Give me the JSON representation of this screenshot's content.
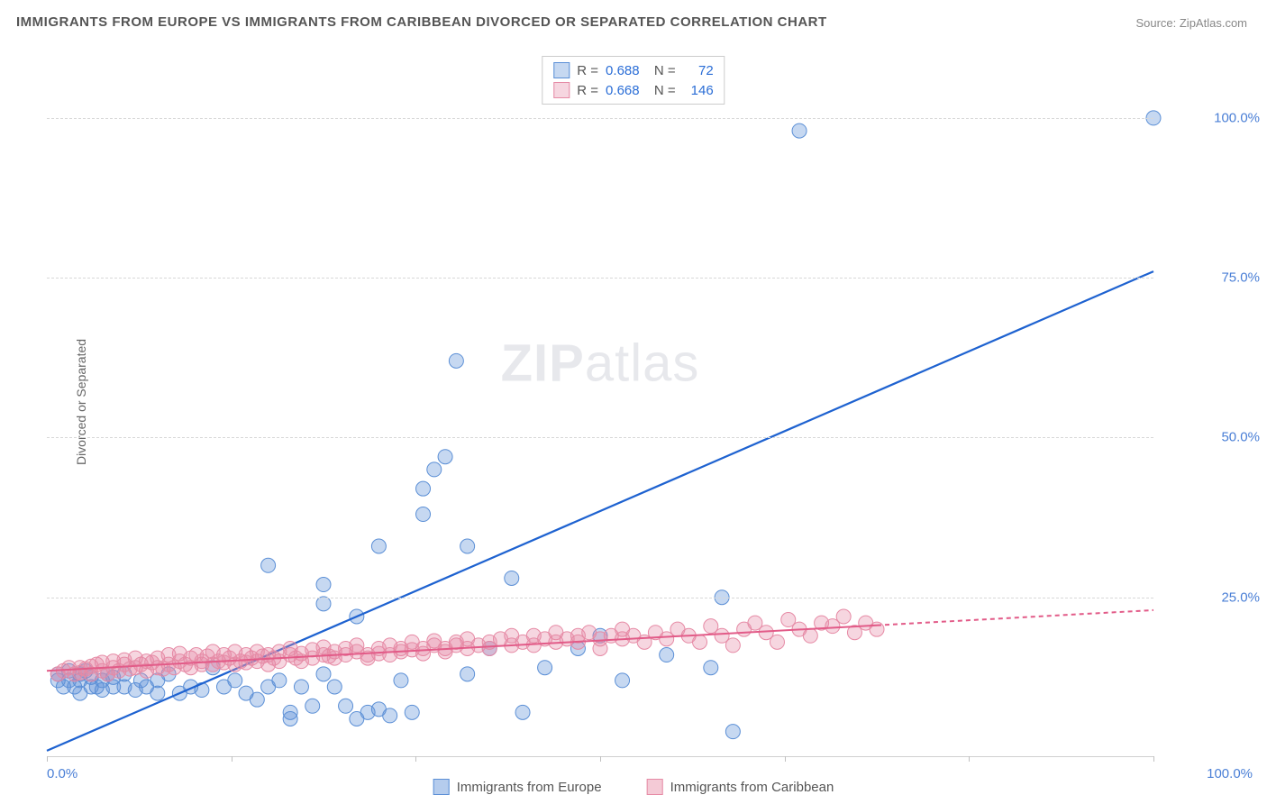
{
  "title": "IMMIGRANTS FROM EUROPE VS IMMIGRANTS FROM CARIBBEAN DIVORCED OR SEPARATED CORRELATION CHART",
  "source": "Source: ZipAtlas.com",
  "ylabel": "Divorced or Separated",
  "watermark_zip": "ZIP",
  "watermark_atlas": "atlas",
  "chart": {
    "type": "scatter",
    "background_color": "#ffffff",
    "grid_color": "#d8d8d8",
    "axis_color": "#d0d0d0",
    "ylim": [
      0,
      110
    ],
    "yticks": [
      25,
      50,
      75,
      100
    ],
    "ytick_labels": [
      "25.0%",
      "50.0%",
      "75.0%",
      "100.0%"
    ],
    "xlim": [
      0,
      100
    ],
    "xticks": [
      0,
      16.67,
      33.33,
      50,
      66.67,
      83.33,
      100
    ],
    "xtick_labels_shown": {
      "0": "0.0%",
      "100": "100.0%"
    },
    "label_color": "#4a7fd6",
    "label_fontsize": 15,
    "marker_radius": 8,
    "marker_opacity": 0.5,
    "marker_stroke_width": 1,
    "series": [
      {
        "name": "Immigrants from Europe",
        "color": "#5b8fd6",
        "fill": "rgba(91,143,214,0.35)",
        "R": "0.688",
        "N": "72",
        "trend": {
          "x1": 0,
          "y1": 1,
          "x2": 100,
          "y2": 76,
          "dash_after_x": null,
          "stroke_width": 2.2,
          "color": "#1e62d0"
        },
        "points": [
          [
            1,
            12
          ],
          [
            1,
            13
          ],
          [
            1.5,
            11
          ],
          [
            2,
            12
          ],
          [
            2,
            13.5
          ],
          [
            2.5,
            11
          ],
          [
            3,
            12
          ],
          [
            3,
            13
          ],
          [
            3,
            10
          ],
          [
            3.5,
            13.5
          ],
          [
            4,
            11
          ],
          [
            4,
            12.5
          ],
          [
            4.5,
            11
          ],
          [
            5,
            12
          ],
          [
            5,
            10.5
          ],
          [
            5.5,
            13
          ],
          [
            6,
            11
          ],
          [
            6,
            12.5
          ],
          [
            7,
            11
          ],
          [
            7,
            13
          ],
          [
            8,
            10.5
          ],
          [
            8.5,
            12
          ],
          [
            9,
            11
          ],
          [
            10,
            12
          ],
          [
            10,
            10
          ],
          [
            11,
            13
          ],
          [
            12,
            10
          ],
          [
            13,
            11
          ],
          [
            14,
            10.5
          ],
          [
            15,
            14
          ],
          [
            16,
            11
          ],
          [
            17,
            12
          ],
          [
            18,
            10
          ],
          [
            19,
            9
          ],
          [
            20,
            11
          ],
          [
            20,
            30
          ],
          [
            21,
            12
          ],
          [
            22,
            6
          ],
          [
            22,
            7
          ],
          [
            23,
            11
          ],
          [
            24,
            8
          ],
          [
            25,
            13
          ],
          [
            25,
            27
          ],
          [
            25,
            24
          ],
          [
            26,
            11
          ],
          [
            27,
            8
          ],
          [
            28,
            22
          ],
          [
            28,
            6
          ],
          [
            29,
            7
          ],
          [
            30,
            7.5
          ],
          [
            30,
            33
          ],
          [
            31,
            6.5
          ],
          [
            32,
            12
          ],
          [
            33,
            7
          ],
          [
            34,
            42
          ],
          [
            34,
            38
          ],
          [
            35,
            45
          ],
          [
            36,
            47
          ],
          [
            37,
            62
          ],
          [
            38,
            33
          ],
          [
            38,
            13
          ],
          [
            40,
            17
          ],
          [
            42,
            28
          ],
          [
            43,
            7
          ],
          [
            45,
            14
          ],
          [
            48,
            17
          ],
          [
            50,
            19
          ],
          [
            52,
            12
          ],
          [
            56,
            16
          ],
          [
            60,
            14
          ],
          [
            61,
            25
          ],
          [
            62,
            4
          ],
          [
            68,
            98
          ],
          [
            100,
            100
          ]
        ]
      },
      {
        "name": "Immigrants from Caribbean",
        "color": "#e68aa5",
        "fill": "rgba(230,138,165,0.35)",
        "R": "0.668",
        "N": "146",
        "trend": {
          "x1": 0,
          "y1": 13.5,
          "x2": 100,
          "y2": 23,
          "dash_after_x": 75,
          "stroke_width": 2,
          "color": "#e25b88"
        },
        "points": [
          [
            1,
            13
          ],
          [
            1.5,
            13.5
          ],
          [
            2,
            14
          ],
          [
            2.5,
            13
          ],
          [
            3,
            14
          ],
          [
            3,
            13.2
          ],
          [
            3.5,
            13.8
          ],
          [
            4,
            14.2
          ],
          [
            4,
            13
          ],
          [
            4.5,
            14.5
          ],
          [
            5,
            13.5
          ],
          [
            5,
            14.8
          ],
          [
            5.5,
            13
          ],
          [
            6,
            14
          ],
          [
            6,
            15
          ],
          [
            6.5,
            13.5
          ],
          [
            7,
            14.5
          ],
          [
            7,
            15.2
          ],
          [
            7.5,
            13.8
          ],
          [
            8,
            14
          ],
          [
            8,
            15.5
          ],
          [
            8.5,
            14.5
          ],
          [
            9,
            13.5
          ],
          [
            9,
            15
          ],
          [
            9.5,
            14.8
          ],
          [
            10,
            14
          ],
          [
            10,
            15.5
          ],
          [
            10.5,
            13.8
          ],
          [
            11,
            14.5
          ],
          [
            11,
            16
          ],
          [
            11.5,
            14
          ],
          [
            12,
            15
          ],
          [
            12,
            16.2
          ],
          [
            12.5,
            14.5
          ],
          [
            13,
            15.5
          ],
          [
            13,
            14
          ],
          [
            13.5,
            16
          ],
          [
            14,
            15
          ],
          [
            14,
            14.5
          ],
          [
            14.5,
            15.8
          ],
          [
            15,
            14.5
          ],
          [
            15,
            16.5
          ],
          [
            15.5,
            15
          ],
          [
            16,
            14.8
          ],
          [
            16,
            16
          ],
          [
            16.5,
            15.5
          ],
          [
            17,
            14.5
          ],
          [
            17,
            16.5
          ],
          [
            17.5,
            15
          ],
          [
            18,
            16
          ],
          [
            18,
            14.8
          ],
          [
            18.5,
            15.5
          ],
          [
            19,
            16.5
          ],
          [
            19,
            15
          ],
          [
            19.5,
            15.8
          ],
          [
            20,
            16
          ],
          [
            20,
            14.5
          ],
          [
            20.5,
            15.5
          ],
          [
            21,
            16.5
          ],
          [
            21,
            15
          ],
          [
            22,
            16
          ],
          [
            22,
            17
          ],
          [
            22.5,
            15.5
          ],
          [
            23,
            16.2
          ],
          [
            23,
            15
          ],
          [
            24,
            16.8
          ],
          [
            24,
            15.5
          ],
          [
            25,
            16
          ],
          [
            25,
            17.2
          ],
          [
            25.5,
            15.8
          ],
          [
            26,
            16.5
          ],
          [
            26,
            15.5
          ],
          [
            27,
            17
          ],
          [
            27,
            16
          ],
          [
            28,
            16.5
          ],
          [
            28,
            17.5
          ],
          [
            29,
            16
          ],
          [
            29,
            15.5
          ],
          [
            30,
            17
          ],
          [
            30,
            16.2
          ],
          [
            31,
            17.5
          ],
          [
            31,
            16
          ],
          [
            32,
            17
          ],
          [
            32,
            16.5
          ],
          [
            33,
            18
          ],
          [
            33,
            16.8
          ],
          [
            34,
            17
          ],
          [
            34,
            16.2
          ],
          [
            35,
            17.5
          ],
          [
            35,
            18.2
          ],
          [
            36,
            17
          ],
          [
            36,
            16.5
          ],
          [
            37,
            18
          ],
          [
            37,
            17.5
          ],
          [
            38,
            17
          ],
          [
            38,
            18.5
          ],
          [
            39,
            17.5
          ],
          [
            40,
            18
          ],
          [
            40,
            17
          ],
          [
            41,
            18.5
          ],
          [
            42,
            17.5
          ],
          [
            42,
            19
          ],
          [
            43,
            18
          ],
          [
            44,
            17.5
          ],
          [
            44,
            19
          ],
          [
            45,
            18.5
          ],
          [
            46,
            18
          ],
          [
            46,
            19.5
          ],
          [
            47,
            18.5
          ],
          [
            48,
            19
          ],
          [
            48,
            18
          ],
          [
            49,
            19.5
          ],
          [
            50,
            18.5
          ],
          [
            50,
            17
          ],
          [
            51,
            19
          ],
          [
            52,
            18.5
          ],
          [
            52,
            20
          ],
          [
            53,
            19
          ],
          [
            54,
            18
          ],
          [
            55,
            19.5
          ],
          [
            56,
            18.5
          ],
          [
            57,
            20
          ],
          [
            58,
            19
          ],
          [
            59,
            18
          ],
          [
            60,
            20.5
          ],
          [
            61,
            19
          ],
          [
            62,
            17.5
          ],
          [
            63,
            20
          ],
          [
            64,
            21
          ],
          [
            65,
            19.5
          ],
          [
            66,
            18
          ],
          [
            67,
            21.5
          ],
          [
            68,
            20
          ],
          [
            69,
            19
          ],
          [
            70,
            21
          ],
          [
            71,
            20.5
          ],
          [
            72,
            22
          ],
          [
            73,
            19.5
          ],
          [
            74,
            21
          ],
          [
            75,
            20
          ]
        ]
      }
    ],
    "legend_bottom": [
      {
        "label": "Immigrants from Europe",
        "fill": "rgba(91,143,214,0.45)",
        "border": "#5b8fd6"
      },
      {
        "label": "Immigrants from Caribbean",
        "fill": "rgba(230,138,165,0.45)",
        "border": "#e68aa5"
      }
    ]
  }
}
